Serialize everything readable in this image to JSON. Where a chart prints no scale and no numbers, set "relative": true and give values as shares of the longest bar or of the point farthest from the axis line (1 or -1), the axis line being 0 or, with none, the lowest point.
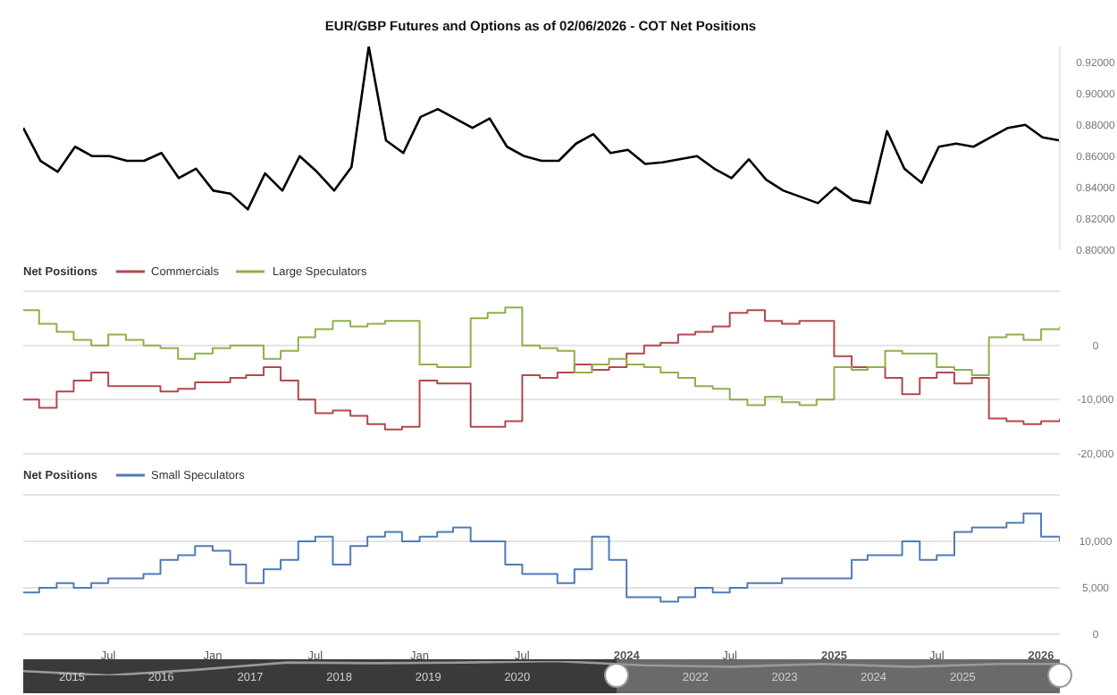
{
  "chart_data": [
    {
      "type": "line",
      "title": "EUR/GBP Futures and Options as of 02/06/2026 - COT Net Positions",
      "categories": [
        null,
        null,
        null,
        null,
        null,
        null,
        null,
        null,
        null,
        null,
        null,
        null,
        null,
        null,
        null,
        null,
        null,
        null,
        null,
        null,
        null,
        null,
        null,
        null,
        null,
        null,
        null,
        null,
        null,
        null,
        null,
        null,
        null,
        null,
        null,
        null,
        null,
        null,
        null,
        null,
        null,
        null,
        null,
        null,
        null,
        null,
        null,
        null,
        null,
        null,
        null,
        null,
        null,
        null,
        null,
        null,
        null,
        null,
        null,
        null,
        null
      ],
      "ylim": [
        0.8,
        0.93
      ],
      "yticks": [
        {
          "value": 0.8,
          "label": "0.80000"
        },
        {
          "value": 0.82,
          "label": "0.82000"
        },
        {
          "value": 0.84,
          "label": "0.84000"
        },
        {
          "value": 0.86,
          "label": "0.86000"
        },
        {
          "value": 0.88,
          "label": "0.88000"
        },
        {
          "value": 0.9,
          "label": "0.90000"
        },
        {
          "value": 0.92,
          "label": "0.92000"
        }
      ],
      "tick_labels": "y",
      "grid": false,
      "legend": false,
      "series": [
        {
          "color": "#000000",
          "values": [
            0.878,
            0.857,
            0.85,
            0.866,
            0.86,
            0.86,
            0.857,
            0.857,
            0.862,
            0.846,
            0.852,
            0.838,
            0.836,
            0.826,
            0.849,
            0.838,
            0.86,
            0.85,
            0.838,
            0.853,
            0.93,
            0.87,
            0.862,
            0.885,
            0.89,
            0.884,
            0.878,
            0.884,
            0.866,
            0.86,
            0.857,
            0.857,
            0.868,
            0.874,
            0.862,
            0.864,
            0.855,
            0.856,
            0.858,
            0.86,
            0.852,
            0.846,
            0.858,
            0.845,
            0.838,
            0.834,
            0.83,
            0.84,
            0.832,
            0.83,
            0.876,
            0.852,
            0.843,
            0.866,
            0.868,
            0.866,
            0.872,
            0.878,
            0.88,
            0.872,
            0.87
          ]
        }
      ]
    },
    {
      "type": "step",
      "legend_title": "Net Positions",
      "legend": "top left",
      "grid": "y",
      "xlim": [
        "2021-02-01",
        "2026-02-03"
      ],
      "ylim": [
        -20000,
        10000
      ],
      "yticks": [
        {
          "value": -20000,
          "label": "-20,000"
        },
        {
          "value": -10000,
          "label": "-10,000"
        },
        0,
        {
          "value": 10000,
          "label": null
        }
      ],
      "tick_labels": "y",
      "x": [
        "2021-02-01",
        "2021-03-01",
        "2021-04-01",
        "2021-05-01",
        "2021-06-01",
        "2021-07-01",
        "2021-08-01",
        "2021-09-01",
        "2021-10-01",
        "2021-11-01",
        "2021-12-01",
        "2022-01-01",
        "2022-02-01",
        "2022-03-01",
        "2022-04-01",
        "2022-05-01",
        "2022-06-01",
        "2022-07-01",
        "2022-08-01",
        "2022-09-01",
        "2022-10-01",
        "2022-11-01",
        "2022-12-01",
        "2023-01-01",
        "2023-02-01",
        "2023-03-01",
        "2023-04-01",
        "2023-05-01",
        "2023-06-01",
        "2023-07-01",
        "2023-08-01",
        "2023-09-01",
        "2023-10-01",
        "2023-11-01",
        "2023-12-01",
        "2024-01-01",
        "2024-02-01",
        "2024-03-01",
        "2024-04-01",
        "2024-05-01",
        "2024-06-01",
        "2024-07-01",
        "2024-08-01",
        "2024-09-01",
        "2024-10-01",
        "2024-11-01",
        "2024-12-01",
        "2025-01-01",
        "2025-02-01",
        "2025-03-01",
        "2025-04-01",
        "2025-05-01",
        "2025-06-01",
        "2025-07-01",
        "2025-08-01",
        "2025-09-01",
        "2025-10-01",
        "2025-11-01",
        "2025-12-01",
        "2026-01-01",
        "2026-02-03"
      ],
      "series": [
        {
          "name": "Commercials",
          "color": "#b5484b",
          "values": [
            -10000,
            -11500,
            -8500,
            -6500,
            -5000,
            -7500,
            -7500,
            -7500,
            -8500,
            -8000,
            -6800,
            -6800,
            -6000,
            -5500,
            -4000,
            -6500,
            -10000,
            -12500,
            -12000,
            -13000,
            -14500,
            -15500,
            -15000,
            -6500,
            -7000,
            -7000,
            -15000,
            -15000,
            -14000,
            -5500,
            -6000,
            -5000,
            -3500,
            -4500,
            -4000,
            -1500,
            0,
            500,
            2000,
            2500,
            3500,
            6000,
            6500,
            4500,
            4000,
            4500,
            4500,
            -2000,
            -4000,
            -4000,
            -6000,
            -9000,
            -6000,
            -5000,
            -7000,
            -6000,
            -13500,
            -14000,
            -14500,
            -14000,
            -13500
          ]
        },
        {
          "name": "Large Speculators",
          "color": "#8fb04a",
          "values": [
            6500,
            4000,
            2500,
            1000,
            0,
            2000,
            1000,
            0,
            -500,
            -2500,
            -1500,
            -500,
            0,
            0,
            -2500,
            -1000,
            1500,
            3000,
            4500,
            3500,
            4000,
            4500,
            4500,
            -3500,
            -4000,
            -4000,
            5000,
            6000,
            7000,
            0,
            -500,
            -1000,
            -5000,
            -3500,
            -2500,
            -3500,
            -4000,
            -5000,
            -6000,
            -7500,
            -8000,
            -10000,
            -11000,
            -9500,
            -10500,
            -11000,
            -10000,
            -4000,
            -4500,
            -4000,
            -1000,
            -1500,
            -1500,
            -4000,
            -4500,
            -5500,
            1500,
            2000,
            1000,
            3000,
            3500
          ]
        }
      ]
    },
    {
      "type": "step",
      "legend_title": "Net Positions",
      "legend": "top left",
      "grid": "y",
      "xlim": [
        "2021-02-01",
        "2026-02-03"
      ],
      "ylim": [
        0,
        15000
      ],
      "yticks": [
        0,
        {
          "value": 5000,
          "label": "5,000"
        },
        {
          "value": 10000,
          "label": "10,000"
        },
        {
          "value": 15000,
          "label": null
        }
      ],
      "xticks": [
        {
          "value": "2021-07-01",
          "label": "Jul"
        },
        {
          "value": "2022-01-01",
          "label": "Jan"
        },
        {
          "value": "2022-07-01",
          "label": "Jul"
        },
        {
          "value": "2023-01-01",
          "label": "Jan"
        },
        {
          "value": "2023-07-01",
          "label": "Jul"
        },
        {
          "value": "2024-01-01",
          "label": "2024"
        },
        {
          "value": "2024-07-01",
          "label": "Jul"
        },
        {
          "value": "2025-01-01",
          "label": "2025"
        },
        {
          "value": "2025-07-01",
          "label": "Jul"
        },
        {
          "value": "2026-01-01",
          "label": "2026"
        }
      ],
      "x": [
        "2021-02-01",
        "2021-03-01",
        "2021-04-01",
        "2021-05-01",
        "2021-06-01",
        "2021-07-01",
        "2021-08-01",
        "2021-09-01",
        "2021-10-01",
        "2021-11-01",
        "2021-12-01",
        "2022-01-01",
        "2022-02-01",
        "2022-03-01",
        "2022-04-01",
        "2022-05-01",
        "2022-06-01",
        "2022-07-01",
        "2022-08-01",
        "2022-09-01",
        "2022-10-01",
        "2022-11-01",
        "2022-12-01",
        "2023-01-01",
        "2023-02-01",
        "2023-03-01",
        "2023-04-01",
        "2023-05-01",
        "2023-06-01",
        "2023-07-01",
        "2023-08-01",
        "2023-09-01",
        "2023-10-01",
        "2023-11-01",
        "2023-12-01",
        "2024-01-01",
        "2024-02-01",
        "2024-03-01",
        "2024-04-01",
        "2024-05-01",
        "2024-06-01",
        "2024-07-01",
        "2024-08-01",
        "2024-09-01",
        "2024-10-01",
        "2024-11-01",
        "2024-12-01",
        "2025-01-01",
        "2025-02-01",
        "2025-03-01",
        "2025-04-01",
        "2025-05-01",
        "2025-06-01",
        "2025-07-01",
        "2025-08-01",
        "2025-09-01",
        "2025-10-01",
        "2025-11-01",
        "2025-12-01",
        "2026-01-01",
        "2026-02-03"
      ],
      "series": [
        {
          "name": "Small Speculators",
          "color": "#4f7bb8",
          "values": [
            4500,
            5000,
            5500,
            5000,
            5500,
            6000,
            6000,
            6500,
            8000,
            8500,
            9500,
            9000,
            7500,
            5500,
            7000,
            8000,
            10000,
            10500,
            7500,
            9500,
            10500,
            11000,
            10000,
            10500,
            11000,
            11500,
            10000,
            10000,
            7500,
            6500,
            6500,
            5500,
            7000,
            10500,
            8000,
            4000,
            4000,
            3500,
            4000,
            5000,
            4500,
            5000,
            5500,
            5500,
            6000,
            6000,
            6000,
            6000,
            8000,
            8500,
            8500,
            10000,
            8000,
            8500,
            11000,
            11500,
            11500,
            12000,
            13000,
            10500,
            10000
          ]
        }
      ]
    },
    {
      "type": "line",
      "relative": true,
      "tick_labels": "x",
      "xlim": [
        "2014-06-15",
        "2026-02-03"
      ],
      "xticks": [
        {
          "value": "2015-01-01",
          "label": "2015"
        },
        {
          "value": "2016-01-01",
          "label": "2016"
        },
        {
          "value": "2017-01-01",
          "label": "2017"
        },
        {
          "value": "2018-01-01",
          "label": "2018"
        },
        {
          "value": "2019-01-01",
          "label": "2019"
        },
        {
          "value": "2020-01-01",
          "label": "2020"
        },
        {
          "value": "2022-01-01",
          "label": "2022"
        },
        {
          "value": "2023-01-01",
          "label": "2023"
        },
        {
          "value": "2024-01-01",
          "label": "2024"
        },
        {
          "value": "2025-01-01",
          "label": "2025"
        }
      ],
      "x": [
        "2014-06-15",
        "2015-06-01",
        "2016-06-01",
        "2017-06-01",
        "2018-06-01",
        "2019-06-01",
        "2020-06-01",
        "2021-06-01",
        "2022-06-01",
        "2023-06-01",
        "2024-06-01",
        "2025-06-01",
        "2026-02-03"
      ],
      "series": [
        {
          "color": "#9a9a9a",
          "values": [
            0.3,
            0,
            0.4,
            0.9,
            0.85,
            0.9,
            1,
            0.7,
            0.6,
            0.8,
            0.6,
            0.8,
            0.8
          ]
        }
      ]
    }
  ]
}
